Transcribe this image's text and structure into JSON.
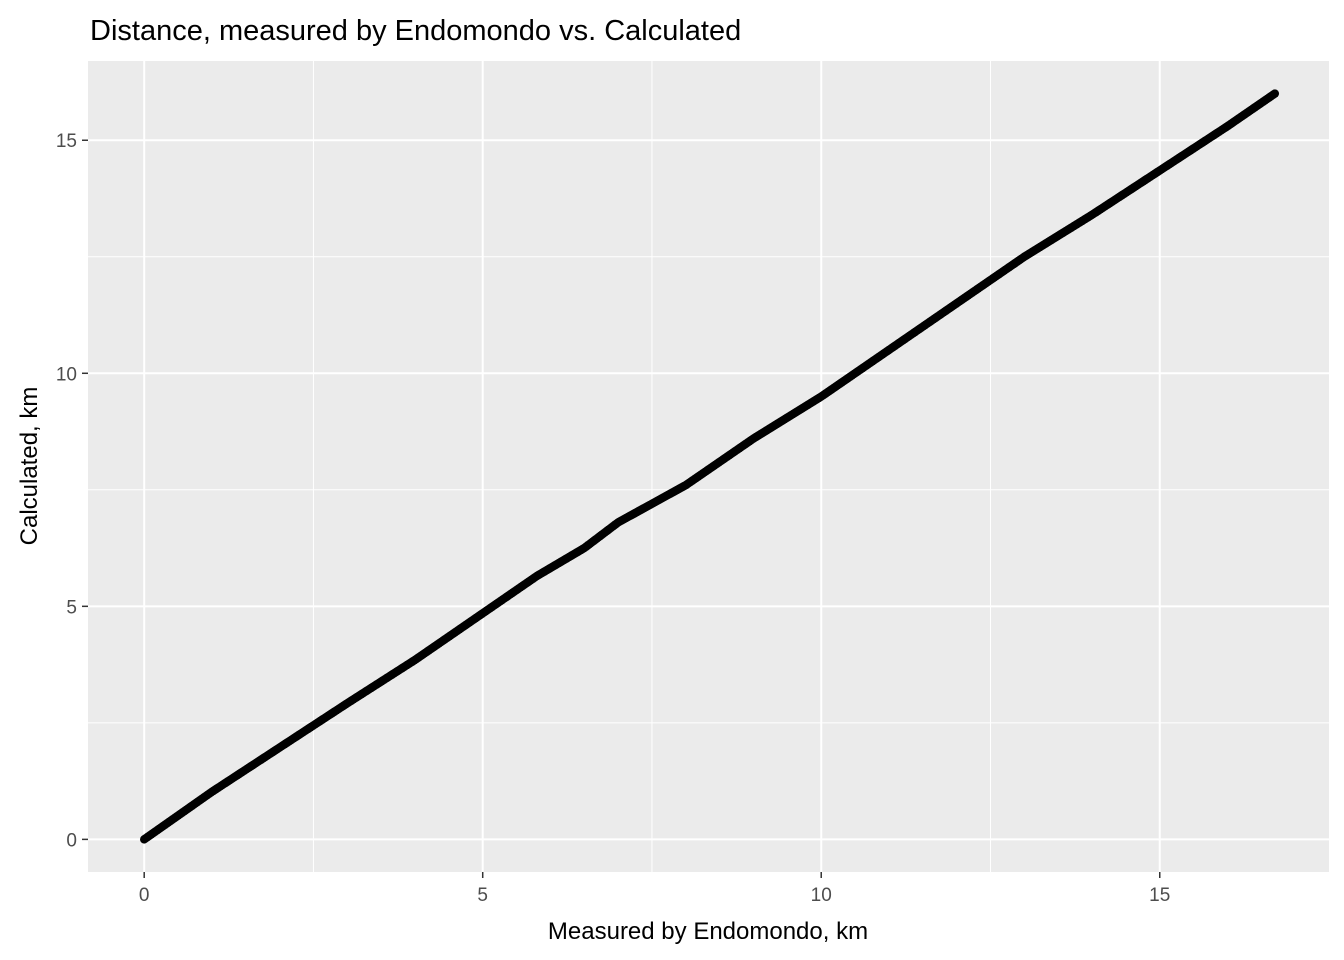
{
  "chart_data": {
    "type": "scatter",
    "title": "Distance, measured by Endomondo vs. Calculated",
    "xlabel": "Measured by Endomondo, km",
    "ylabel": "Calculated, km",
    "xlim": [
      -0.83,
      17.5
    ],
    "ylim": [
      -0.7,
      16.7
    ],
    "x_ticks": [
      0,
      5,
      10,
      15
    ],
    "y_ticks": [
      0,
      5,
      10,
      15
    ],
    "x_minor": [
      2.5,
      7.5,
      12.5
    ],
    "y_minor": [
      2.5,
      7.5,
      12.5
    ],
    "grid": true,
    "legend": "none",
    "series": [
      {
        "x": [
          0,
          1,
          2,
          3,
          4,
          5,
          5.8,
          6.5,
          7,
          8,
          9,
          10,
          11,
          12,
          13,
          14,
          15,
          16,
          16.7
        ],
        "y": [
          0,
          1.02,
          1.97,
          2.92,
          3.85,
          4.85,
          5.65,
          6.25,
          6.8,
          7.6,
          8.6,
          9.5,
          10.5,
          11.5,
          12.5,
          13.4,
          14.35,
          15.3,
          16
        ]
      }
    ],
    "colors": {
      "panel_background": "#ebebeb",
      "grid": "#ffffff",
      "points": "#000000",
      "tick_text": "#4d4d4d",
      "tick_mark": "#333333"
    }
  }
}
